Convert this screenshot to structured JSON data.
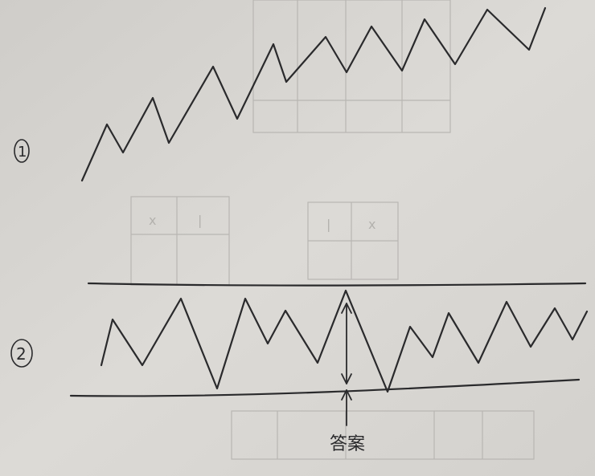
{
  "labels": {
    "figure_1": "1",
    "figure_2": "2",
    "answer": "答案"
  },
  "faint_marks": {
    "x_mark": "x",
    "bar_mark": "|"
  },
  "colors": {
    "paper": "#d8d6d2",
    "ink": "#2a2a2c",
    "faint_pencil": "#b8b6b2"
  }
}
